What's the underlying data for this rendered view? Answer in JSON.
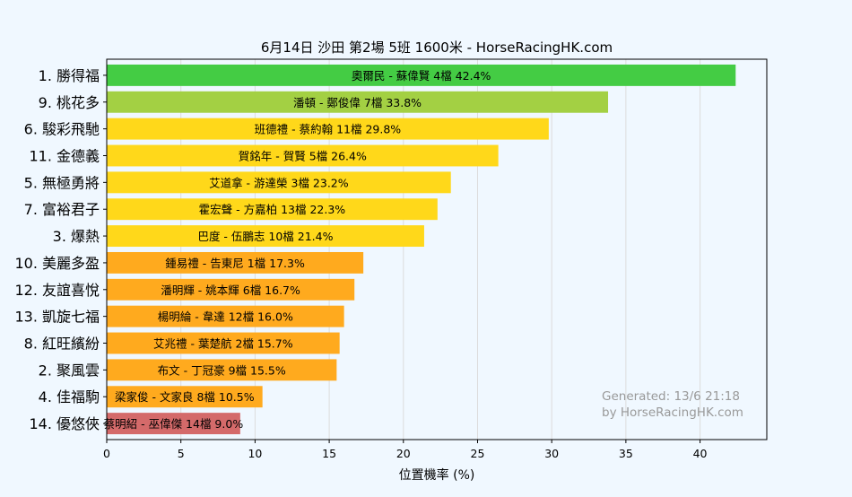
{
  "chart_data": {
    "type": "bar",
    "orientation": "horizontal",
    "title": "6月14日  沙田  第2場  5班  1600米 - HorseRacingHK.com",
    "xlabel": "位置機率 (%)",
    "ylabel": "",
    "xlim": [
      0,
      44.5
    ],
    "xticks": [
      0,
      5,
      10,
      15,
      20,
      25,
      30,
      35,
      40
    ],
    "grid": true,
    "colors": {
      "green": "#44cc44",
      "lightgreen": "#a3d043",
      "yellow": "#ffd81a",
      "orange": "#ffaa1e",
      "red": "#d46a6a",
      "background": "#f0f8ff",
      "plot_background": "#f0f8ff",
      "grid": "#dcdcdc",
      "watermark": "#999999"
    },
    "bars": [
      {
        "horse": "1. 勝得福",
        "label": "奧爾民 - 蘇偉賢 4檔",
        "value": 42.4,
        "color": "green"
      },
      {
        "horse": "9. 桃花多",
        "label": "潘頓 - 鄭俊偉 7檔",
        "value": 33.8,
        "color": "lightgreen"
      },
      {
        "horse": "6. 駿彩飛馳",
        "label": "班德禮 - 蔡約翰 11檔",
        "value": 29.8,
        "color": "yellow"
      },
      {
        "horse": "11. 金德義",
        "label": "賀銘年 - 賀賢 5檔",
        "value": 26.4,
        "color": "yellow"
      },
      {
        "horse": "5. 無極勇將",
        "label": "艾道拿 - 游達榮 3檔",
        "value": 23.2,
        "color": "yellow"
      },
      {
        "horse": "7. 富裕君子",
        "label": "霍宏聲 - 方嘉柏 13檔",
        "value": 22.3,
        "color": "yellow"
      },
      {
        "horse": "3. 爆熱",
        "label": "巴度 - 伍鵬志 10檔",
        "value": 21.4,
        "color": "yellow"
      },
      {
        "horse": "10. 美麗多盈",
        "label": "鍾易禮 - 告東尼 1檔",
        "value": 17.3,
        "color": "orange"
      },
      {
        "horse": "12. 友誼喜悅",
        "label": "潘明輝 - 姚本輝 6檔",
        "value": 16.7,
        "color": "orange"
      },
      {
        "horse": "13. 凱旋七福",
        "label": "楊明綸 - 韋達 12檔",
        "value": 16.0,
        "color": "orange"
      },
      {
        "horse": "8. 紅旺繽紛",
        "label": "艾兆禮 - 葉楚航 2檔",
        "value": 15.7,
        "color": "orange"
      },
      {
        "horse": "2. 聚風雲",
        "label": "布文 - 丁冠豪 9檔",
        "value": 15.5,
        "color": "orange"
      },
      {
        "horse": "4. 佳福駒",
        "label": "梁家俊 - 文家良 8檔",
        "value": 10.5,
        "color": "orange"
      },
      {
        "horse": "14. 優悠俠",
        "label": "蔡明紹 - 巫偉傑 14檔",
        "value": 9.0,
        "color": "red"
      }
    ],
    "watermark": {
      "line1": "Generated: 13/6 21:18",
      "line2": "by HorseRacingHK.com"
    }
  }
}
